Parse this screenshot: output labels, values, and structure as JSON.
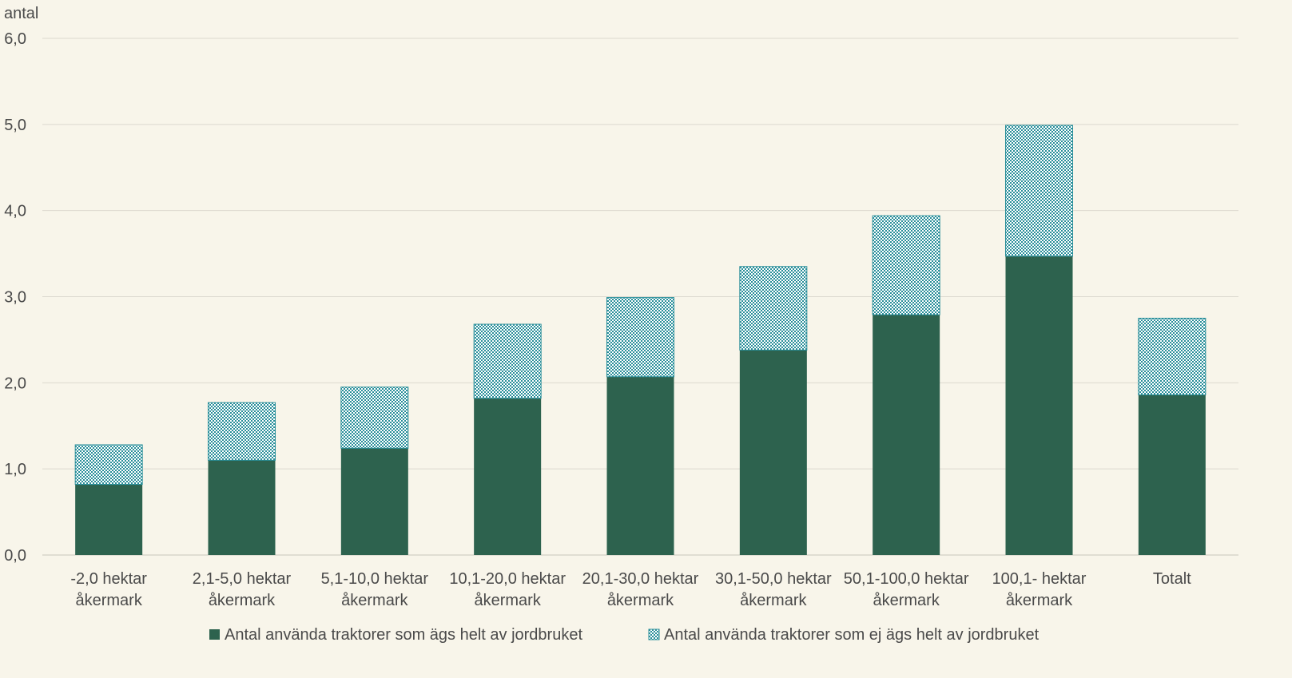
{
  "chart_data": {
    "type": "bar",
    "stacked": true,
    "title": "",
    "xlabel": "",
    "ylabel": "antal",
    "ylim": [
      0,
      6
    ],
    "yticks": [
      "0,0",
      "1,0",
      "2,0",
      "3,0",
      "4,0",
      "5,0",
      "6,0"
    ],
    "grid": true,
    "legend_position": "bottom",
    "categories": [
      [
        "-2,0 hektar",
        "åkermark"
      ],
      [
        "2,1-5,0 hektar",
        "åkermark"
      ],
      [
        "5,1-10,0 hektar",
        "åkermark"
      ],
      [
        "10,1-20,0 hektar",
        "åkermark"
      ],
      [
        "20,1-30,0 hektar",
        "åkermark"
      ],
      [
        "30,1-50,0 hektar",
        "åkermark"
      ],
      [
        "50,1-100,0 hektar",
        "åkermark"
      ],
      [
        "100,1- hektar",
        "åkermark"
      ],
      [
        "Totalt"
      ]
    ],
    "series": [
      {
        "name": "Antal använda traktorer som ägs helt av jordbruket",
        "color": "#2d624e",
        "pattern": "solid",
        "values": [
          0.82,
          1.1,
          1.24,
          1.82,
          2.07,
          2.38,
          2.79,
          3.47,
          1.86
        ]
      },
      {
        "name": "Antal använda traktorer som ej ägs helt av jordbruket",
        "color": "#2a8f9a",
        "pattern": "checker",
        "values": [
          0.46,
          0.67,
          0.71,
          0.86,
          0.92,
          0.97,
          1.15,
          1.52,
          0.89
        ]
      }
    ]
  }
}
